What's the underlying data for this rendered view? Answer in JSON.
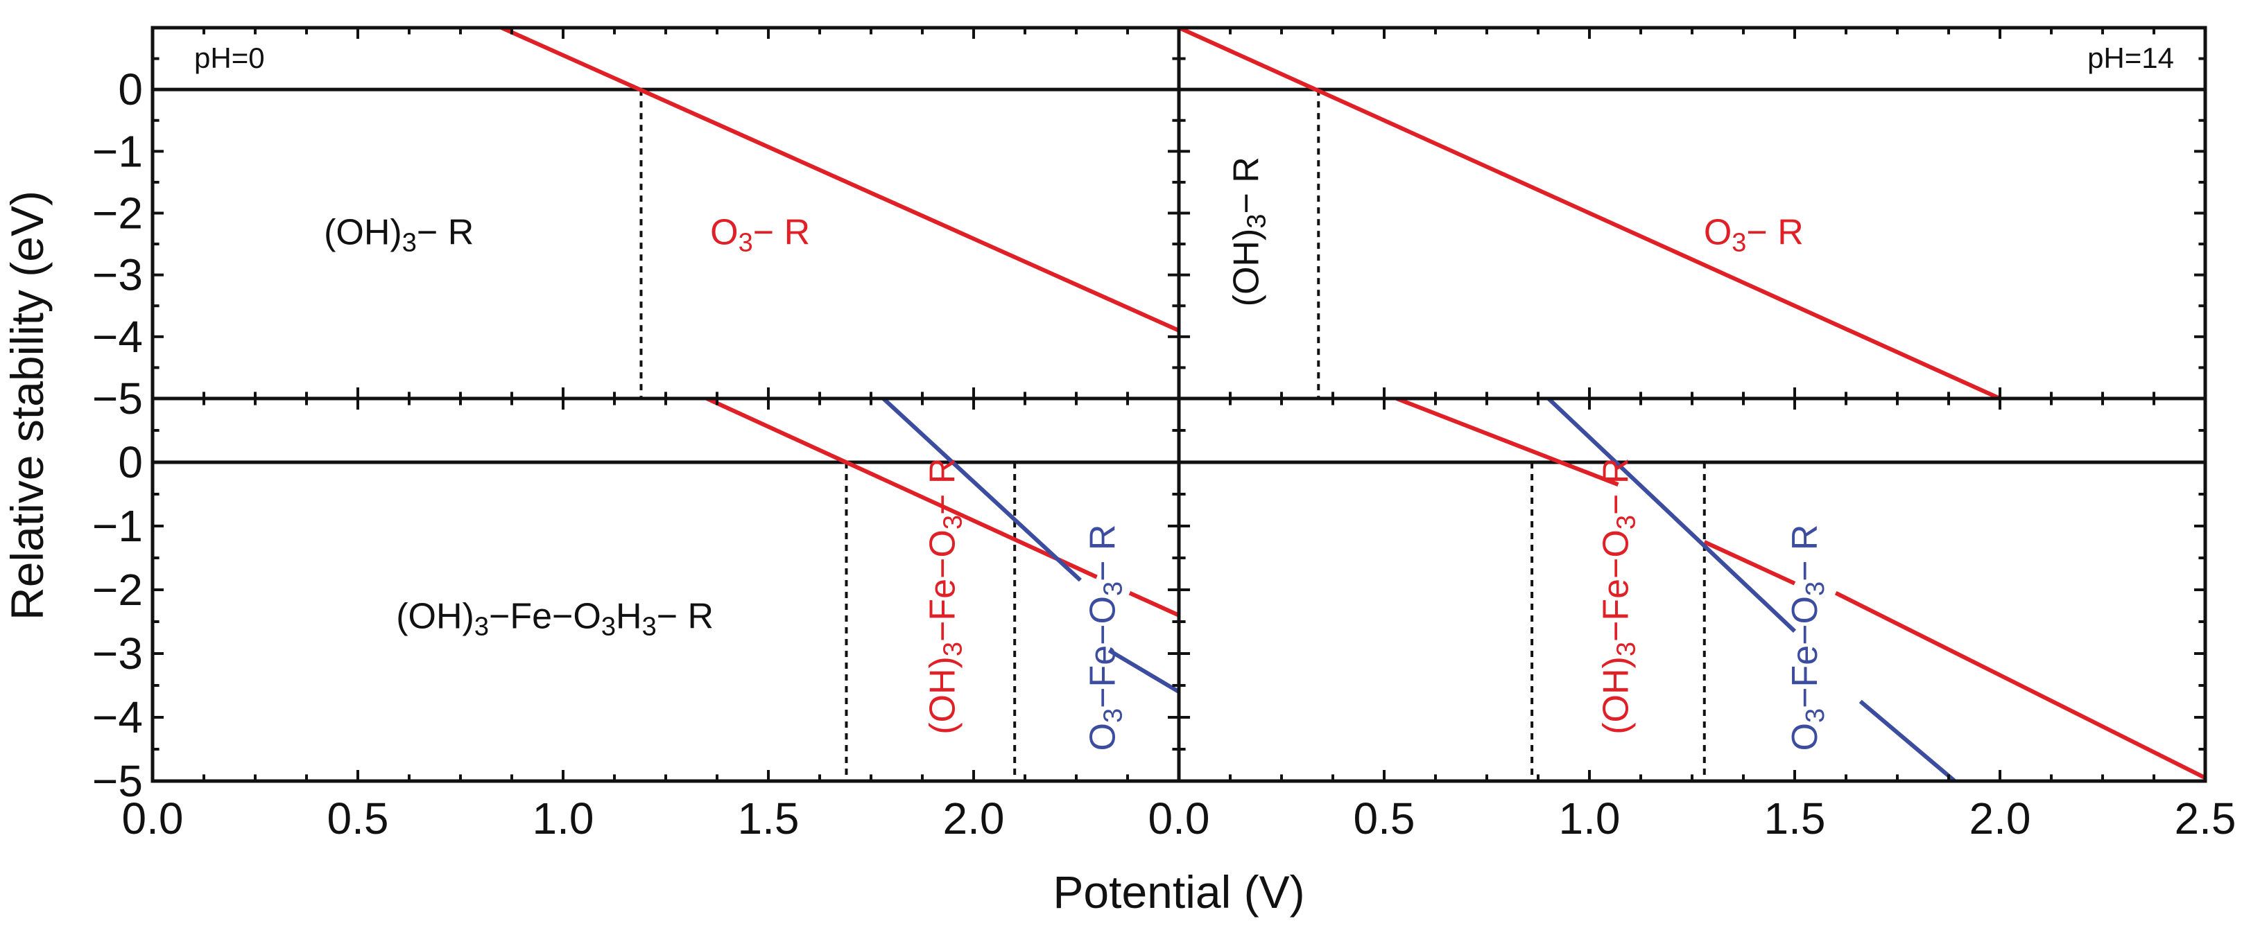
{
  "chart_data": {
    "type": "line",
    "xlabel": "Potential (V)",
    "ylabel": "Relative stability (eV)",
    "colors": {
      "red": "#e02027",
      "blue": "#3c4da0",
      "black": "#111111"
    },
    "yticks": [
      {
        "v": 0,
        "t": "0"
      },
      {
        "v": -1,
        "t": "−1"
      },
      {
        "v": -2,
        "t": "−2"
      },
      {
        "v": -3,
        "t": "−3"
      },
      {
        "v": -4,
        "t": "−4"
      },
      {
        "v": -5,
        "t": "−5"
      }
    ],
    "columns": [
      {
        "ph": "pH=0",
        "xlim": [
          0,
          2.5
        ],
        "xticks": [
          {
            "v": 0,
            "t": "0.0"
          },
          {
            "v": 0.5,
            "t": "0.5"
          },
          {
            "v": 1.0,
            "t": "1.0"
          },
          {
            "v": 1.5,
            "t": "1.5"
          },
          {
            "v": 2.0,
            "t": "2.0"
          }
        ]
      },
      {
        "ph": "pH=14",
        "xlim": [
          0,
          2.5
        ],
        "xticks": [
          {
            "v": 0,
            "t": "0.0"
          },
          {
            "v": 0.5,
            "t": "0.5"
          },
          {
            "v": 1.0,
            "t": "1.0"
          },
          {
            "v": 1.5,
            "t": "1.5"
          },
          {
            "v": 2.0,
            "t": "2.0"
          },
          {
            "v": 2.5,
            "t": "2.5"
          }
        ]
      }
    ],
    "panels": [
      {
        "row": 0,
        "col": 0,
        "ylim": [
          -5,
          1
        ],
        "lines": [
          {
            "name": "O3-R",
            "color": "red",
            "points": [
              [
                0.85,
                1.0
              ],
              [
                2.5,
                -3.9
              ]
            ]
          }
        ],
        "vlines": [
          1.19
        ],
        "labels": [
          {
            "main": "(OH)",
            "subs": [
              {
                "s": "3",
                "t": "− R"
              }
            ],
            "color": "black",
            "x": 0.6,
            "y": -2.35,
            "rot": 0
          },
          {
            "main": "O",
            "subs": [
              {
                "s": "3",
                "t": "− R"
              }
            ],
            "color": "red",
            "x": 1.48,
            "y": -2.35,
            "rot": 0
          }
        ]
      },
      {
        "row": 0,
        "col": 1,
        "ylim": [
          -5,
          1
        ],
        "lines": [
          {
            "name": "O3-R",
            "color": "red",
            "points": [
              [
                0.0,
                1.0
              ],
              [
                2.0,
                -5.0
              ]
            ]
          }
        ],
        "vlines": [
          0.34
        ],
        "labels": [
          {
            "main": "(OH)",
            "subs": [
              {
                "s": "3",
                "t": "− R"
              }
            ],
            "color": "black",
            "x": 0.17,
            "y": -2.3,
            "rot": -90
          },
          {
            "main": "O",
            "subs": [
              {
                "s": "3",
                "t": "− R"
              }
            ],
            "color": "red",
            "x": 1.4,
            "y": -2.35,
            "rot": 0
          }
        ]
      },
      {
        "row": 1,
        "col": 0,
        "ylim": [
          -5,
          1
        ],
        "lines": [
          {
            "name": "(OH)3-Fe-O3-R",
            "color": "red",
            "segments": [
              [
                [
                  1.35,
                  1.0
                ],
                [
                  2.3,
                  -1.8
                ]
              ],
              [
                [
                  2.38,
                  -2.05
                ],
                [
                  2.5,
                  -2.4
                ]
              ]
            ]
          },
          {
            "name": "O3-Fe-O3-R",
            "color": "blue",
            "segments": [
              [
                [
                  1.78,
                  1.0
                ],
                [
                  2.26,
                  -1.85
                ]
              ],
              [
                [
                  2.33,
                  -2.95
                ],
                [
                  2.5,
                  -3.6
                ]
              ]
            ]
          }
        ],
        "vlines": [
          1.69,
          2.1
        ],
        "labels": [
          {
            "main": "(OH)",
            "subs": [
              {
                "s": "3",
                "t": "−Fe−O"
              },
              {
                "s": "3",
                "t": "H"
              },
              {
                "s": "3",
                "t": "− R"
              }
            ],
            "color": "black",
            "x": 0.98,
            "y": -2.45,
            "rot": 0
          },
          {
            "main": "(OH)",
            "subs": [
              {
                "s": "3",
                "t": "−Fe−O"
              },
              {
                "s": "3",
                "t": "− R"
              }
            ],
            "color": "red",
            "x": 1.93,
            "y": -2.1,
            "rot": -90
          },
          {
            "main": "O",
            "subs": [
              {
                "s": "3",
                "t": "−Fe−O"
              },
              {
                "s": "3",
                "t": "− R"
              }
            ],
            "color": "blue",
            "x": 2.32,
            "y": -2.75,
            "rot": -90
          }
        ]
      },
      {
        "row": 1,
        "col": 1,
        "ylim": [
          -5,
          1
        ],
        "lines": [
          {
            "name": "(OH)3-Fe-O3-R",
            "color": "red",
            "segments": [
              [
                [
                  0.53,
                  1.0
                ],
                [
                  1.07,
                  -0.35
                ]
              ],
              [
                [
                  1.28,
                  -1.25
                ],
                [
                  1.5,
                  -1.9
                ]
              ],
              [
                [
                  1.6,
                  -2.05
                ],
                [
                  2.5,
                  -4.95
                ]
              ]
            ]
          },
          {
            "name": "O3-Fe-O3-R",
            "color": "blue",
            "segments": [
              [
                [
                  0.9,
                  1.0
                ],
                [
                  1.5,
                  -2.65
                ]
              ],
              [
                [
                  1.66,
                  -3.75
                ],
                [
                  1.89,
                  -5.0
                ]
              ]
            ]
          }
        ],
        "vlines": [
          0.86,
          1.28
        ],
        "labels": [
          {
            "main": "(OH)",
            "subs": [
              {
                "s": "3",
                "t": "−Fe−O"
              },
              {
                "s": "3",
                "t": "− R"
              }
            ],
            "color": "red",
            "x": 1.07,
            "y": -2.1,
            "rot": -90
          },
          {
            "main": "O",
            "subs": [
              {
                "s": "3",
                "t": "−Fe−O"
              },
              {
                "s": "3",
                "t": "− R"
              }
            ],
            "color": "blue",
            "x": 1.53,
            "y": -2.75,
            "rot": -90
          }
        ]
      }
    ]
  }
}
